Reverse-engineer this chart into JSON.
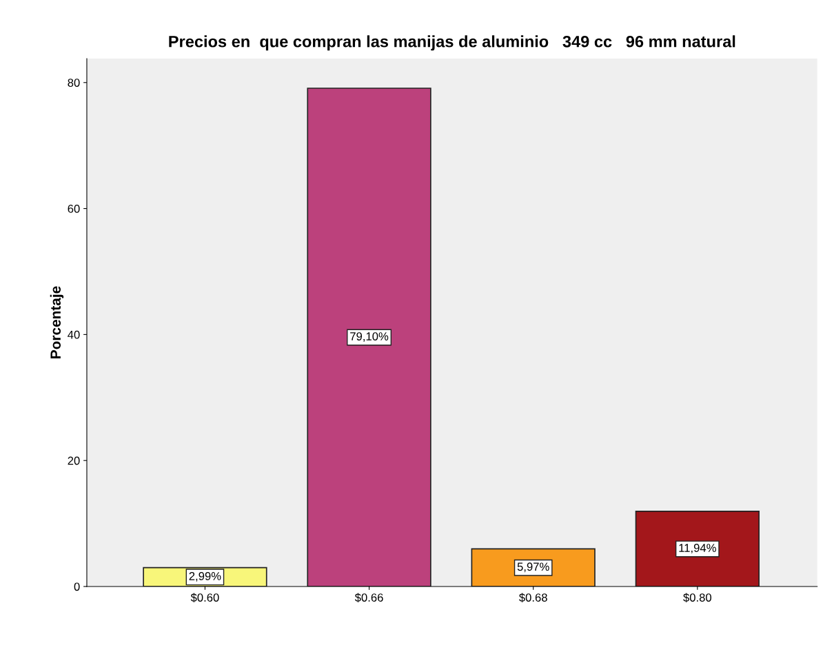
{
  "chart_data": {
    "type": "bar",
    "title": "Precios en  que compran las manijas de aluminio   349 cc   96 mm natural",
    "ylabel": "Porcentaje",
    "categories": [
      "$0.60",
      "$0.66",
      "$0.68",
      "$0.80"
    ],
    "values": [
      2.99,
      79.1,
      5.97,
      11.94
    ],
    "colors": [
      "#f8f67a",
      "#bc417c",
      "#f89b1e",
      "#a3171b"
    ],
    "value_labels": [
      "2,99%",
      "79,10%",
      "5,97%",
      "11,94%"
    ],
    "ylim": [
      0,
      83.8
    ],
    "yticks": [
      0,
      20,
      40,
      60,
      80
    ],
    "grid": false,
    "legend": false
  }
}
